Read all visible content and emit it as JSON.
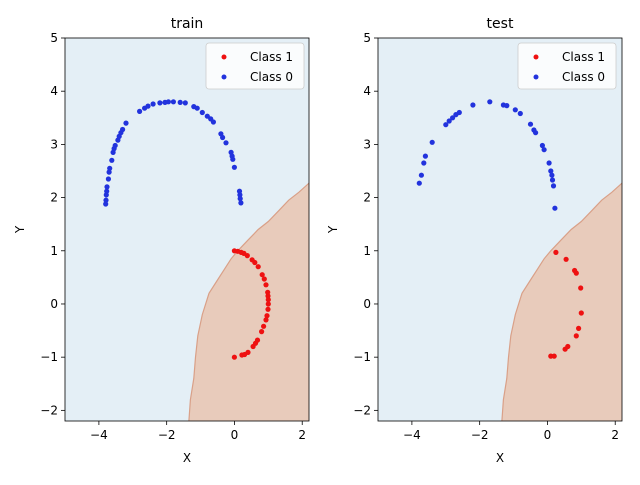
{
  "colors": {
    "class1": "#ee1111",
    "class0": "#2233dd",
    "region_class0": "#e4eff6",
    "region_class1": "#e8cbbb",
    "boundary": "#d9a088"
  },
  "chart_data": [
    {
      "type": "scatter",
      "title": "train",
      "xlabel": "X",
      "ylabel": "Y",
      "xlim": [
        -5,
        2.2
      ],
      "ylim": [
        -2.2,
        5
      ],
      "xticks": [
        -4,
        -2,
        0,
        2
      ],
      "yticks": [
        -2,
        -1,
        0,
        1,
        2,
        3,
        4,
        5
      ],
      "grid": false,
      "legend_position": "top-right",
      "background_regions": [
        "Class 0 (light blue)",
        "Class 1 (light orange)"
      ],
      "series": [
        {
          "name": "Class 1",
          "color": "#ee1111",
          "points": [
            [
              0.0,
              -1.0
            ],
            [
              0.22,
              -0.96
            ],
            [
              0.3,
              -0.95
            ],
            [
              0.4,
              -0.91
            ],
            [
              0.55,
              -0.8
            ],
            [
              0.62,
              -0.74
            ],
            [
              0.68,
              -0.68
            ],
            [
              0.8,
              -0.52
            ],
            [
              0.86,
              -0.42
            ],
            [
              0.93,
              -0.3
            ],
            [
              0.96,
              -0.22
            ],
            [
              0.99,
              -0.1
            ],
            [
              1.0,
              0.0
            ],
            [
              1.0,
              0.08
            ],
            [
              0.99,
              0.15
            ],
            [
              0.98,
              0.22
            ],
            [
              0.93,
              0.36
            ],
            [
              0.88,
              0.47
            ],
            [
              0.82,
              0.55
            ],
            [
              0.7,
              0.7
            ],
            [
              0.6,
              0.78
            ],
            [
              0.52,
              0.83
            ],
            [
              0.38,
              0.91
            ],
            [
              0.28,
              0.95
            ],
            [
              0.2,
              0.97
            ],
            [
              0.1,
              0.99
            ],
            [
              0.0,
              1.0
            ]
          ]
        },
        {
          "name": "Class 0",
          "color": "#2233dd",
          "points": [
            [
              -3.8,
              1.88
            ],
            [
              -3.79,
              1.95
            ],
            [
              -3.78,
              2.05
            ],
            [
              -3.77,
              2.12
            ],
            [
              -3.76,
              2.2
            ],
            [
              -3.72,
              2.35
            ],
            [
              -3.7,
              2.48
            ],
            [
              -3.68,
              2.55
            ],
            [
              -3.62,
              2.7
            ],
            [
              -3.58,
              2.85
            ],
            [
              -3.55,
              2.92
            ],
            [
              -3.52,
              2.98
            ],
            [
              -3.44,
              3.08
            ],
            [
              -3.4,
              3.15
            ],
            [
              -3.35,
              3.22
            ],
            [
              -3.3,
              3.28
            ],
            [
              -3.2,
              3.4
            ],
            [
              -2.8,
              3.62
            ],
            [
              -2.65,
              3.68
            ],
            [
              -2.55,
              3.72
            ],
            [
              -2.4,
              3.76
            ],
            [
              -2.2,
              3.78
            ],
            [
              -2.05,
              3.79
            ],
            [
              -1.95,
              3.8
            ],
            [
              -1.8,
              3.8
            ],
            [
              -1.6,
              3.79
            ],
            [
              -1.45,
              3.78
            ],
            [
              -1.2,
              3.71
            ],
            [
              -1.1,
              3.68
            ],
            [
              -0.95,
              3.6
            ],
            [
              -0.8,
              3.53
            ],
            [
              -0.7,
              3.48
            ],
            [
              -0.62,
              3.42
            ],
            [
              -0.4,
              3.2
            ],
            [
              -0.35,
              3.13
            ],
            [
              -0.25,
              3.03
            ],
            [
              -0.1,
              2.85
            ],
            [
              -0.07,
              2.78
            ],
            [
              -0.05,
              2.72
            ],
            [
              0.0,
              2.57
            ],
            [
              0.15,
              2.12
            ],
            [
              0.16,
              2.05
            ],
            [
              0.17,
              1.98
            ],
            [
              0.19,
              1.9
            ]
          ]
        }
      ]
    },
    {
      "type": "scatter",
      "title": "test",
      "xlabel": "X",
      "ylabel": "Y",
      "xlim": [
        -5,
        2.2
      ],
      "ylim": [
        -2.2,
        5
      ],
      "xticks": [
        -4,
        -2,
        0,
        2
      ],
      "yticks": [
        -2,
        -1,
        0,
        1,
        2,
        3,
        4,
        5
      ],
      "grid": false,
      "legend_position": "top-right",
      "background_regions": [
        "Class 0 (light blue)",
        "Class 1 (light orange)"
      ],
      "series": [
        {
          "name": "Class 1",
          "color": "#ee1111",
          "points": [
            [
              0.1,
              -0.98
            ],
            [
              0.2,
              -0.98
            ],
            [
              0.52,
              -0.85
            ],
            [
              0.6,
              -0.8
            ],
            [
              0.85,
              -0.6
            ],
            [
              0.92,
              -0.46
            ],
            [
              1.0,
              -0.17
            ],
            [
              0.98,
              0.3
            ],
            [
              0.85,
              0.58
            ],
            [
              0.8,
              0.63
            ],
            [
              0.55,
              0.84
            ],
            [
              0.25,
              0.97
            ]
          ]
        },
        {
          "name": "Class 0",
          "color": "#2233dd",
          "points": [
            [
              -3.78,
              2.27
            ],
            [
              -3.72,
              2.42
            ],
            [
              -3.65,
              2.65
            ],
            [
              -3.6,
              2.78
            ],
            [
              -3.4,
              3.04
            ],
            [
              -3.0,
              3.37
            ],
            [
              -2.9,
              3.44
            ],
            [
              -2.8,
              3.5
            ],
            [
              -2.7,
              3.56
            ],
            [
              -2.6,
              3.6
            ],
            [
              -2.2,
              3.74
            ],
            [
              -1.7,
              3.8
            ],
            [
              -1.3,
              3.74
            ],
            [
              -1.2,
              3.73
            ],
            [
              -0.95,
              3.65
            ],
            [
              -0.8,
              3.58
            ],
            [
              -0.5,
              3.38
            ],
            [
              -0.4,
              3.27
            ],
            [
              -0.35,
              3.22
            ],
            [
              -0.15,
              2.98
            ],
            [
              -0.1,
              2.9
            ],
            [
              0.05,
              2.65
            ],
            [
              0.1,
              2.5
            ],
            [
              0.13,
              2.42
            ],
            [
              0.15,
              2.33
            ],
            [
              0.18,
              2.22
            ],
            [
              0.22,
              1.8
            ]
          ]
        }
      ]
    }
  ]
}
